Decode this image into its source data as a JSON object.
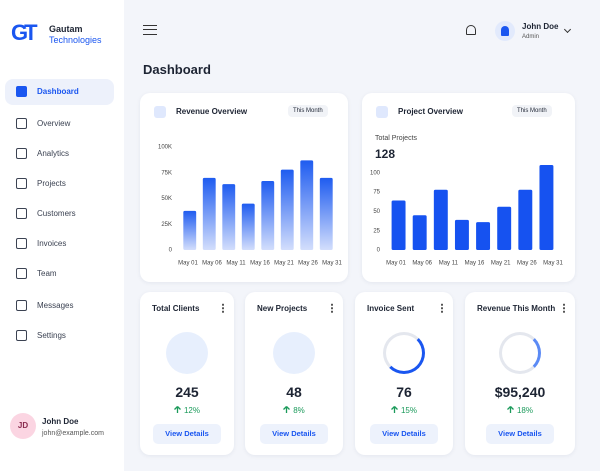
{
  "header": {
    "brand_line1": "Gautam",
    "brand_line2": "Technologies",
    "logo": "GT",
    "user_name": "John Doe",
    "user_role": "Admin"
  },
  "sidebar": {
    "items": [
      "Dashboard",
      "Overview",
      "Analytics",
      "Projects",
      "Customers",
      "Invoices",
      "Team",
      "Messages",
      "Settings"
    ],
    "active": 0,
    "user": {
      "initials": "JD",
      "name": "John Doe",
      "email": "john@example.com"
    }
  },
  "page_title": "Dashboard",
  "revenue_chart": {
    "type": "bar",
    "title": "Revenue Overview",
    "period": "This Month",
    "color": "#1f5cf0",
    "values": [
      38000,
      70000,
      64000,
      45000,
      67000,
      78000,
      87000,
      70000
    ],
    "x_labels": [
      "May 01",
      "May 06",
      "May 11",
      "May 16",
      "May 21",
      "May 26",
      "May 31"
    ],
    "ylim": [
      0,
      100000
    ],
    "yticks": [
      0,
      {
        "value": 25000,
        "label": "25K"
      },
      {
        "value": 50000,
        "label": "50K"
      },
      {
        "value": 75000,
        "label": "75K"
      },
      {
        "value": 100000,
        "label": "100K"
      }
    ]
  },
  "project_chart": {
    "type": "bar",
    "title": "Project Overview",
    "period": "This Month",
    "color": "#1652f0",
    "subtitle": "Total Projects",
    "total": "128",
    "values": [
      64,
      45,
      78,
      39,
      36,
      56,
      78,
      110
    ],
    "x_labels": [
      "May 01",
      "May 06",
      "May 11",
      "May 16",
      "May 21",
      "May 26",
      "May 31"
    ],
    "ylim": [
      0,
      110
    ],
    "yticks": [
      0,
      25,
      50,
      75,
      100
    ]
  },
  "stats": [
    {
      "title": "Total Clients",
      "value": "245",
      "change": "12%",
      "button": "View Details"
    },
    {
      "title": "New Projects",
      "value": "48",
      "change": "8%",
      "button": "View Details"
    },
    {
      "title": "Invoice Sent",
      "value": "76",
      "change": "15%",
      "button": "View Details"
    },
    {
      "title": "Revenue This Month",
      "value": "$95,240",
      "change": "18%",
      "button": "View Details"
    }
  ]
}
